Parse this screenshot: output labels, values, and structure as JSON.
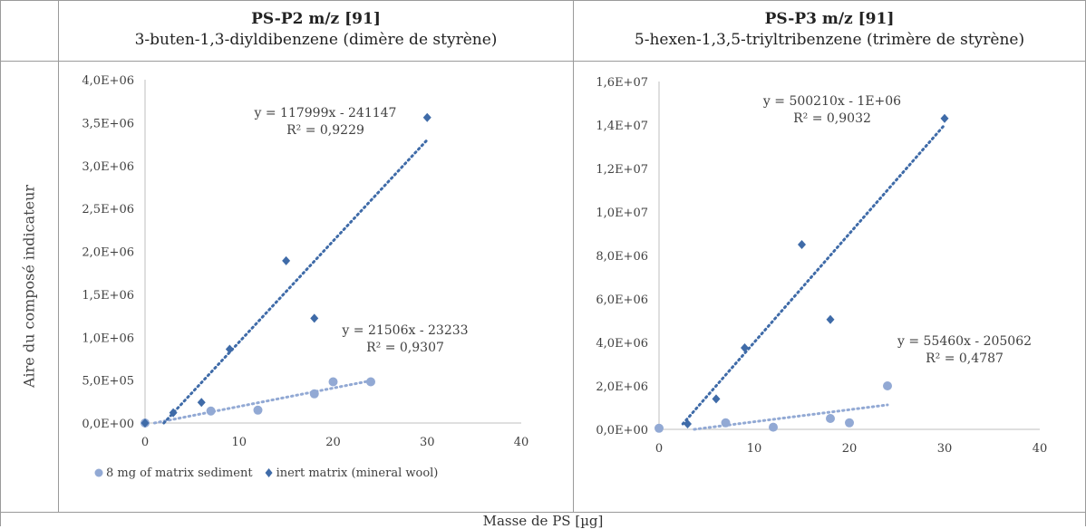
{
  "ylabel": "Aire du composé indicateur",
  "xlabel": "Masse de PS [µg]",
  "colors": {
    "series_sediment": "#92a9d4",
    "series_wool": "#3f6ba8",
    "axis": "#bfbfbf",
    "text": "#404040"
  },
  "chart_data": [
    {
      "type": "scatter",
      "title": "PS-P2 m/z [91]",
      "subtitle": "3-buten-1,3-diyldibenzene (dimère de styrène)",
      "xlim": [
        0,
        40
      ],
      "ylim": [
        0,
        4000000
      ],
      "xticks": [
        0,
        10,
        20,
        30,
        40
      ],
      "yticks": [
        0,
        500000,
        1000000,
        1500000,
        2000000,
        2500000,
        3000000,
        3500000,
        4000000
      ],
      "ytick_labels": [
        "0,0E+00",
        "5,0E+05",
        "1,0E+06",
        "1,5E+06",
        "2,0E+06",
        "2,5E+06",
        "3,0E+06",
        "3,5E+06",
        "4,0E+06"
      ],
      "legend": {
        "position": "bottom",
        "entries": [
          "8 mg of matrix sediment",
          "inert matrix (mineral wool)"
        ]
      },
      "series": [
        {
          "name": "8 mg of matrix sediment",
          "marker": "circle",
          "x": [
            0,
            7,
            12,
            18,
            20,
            24
          ],
          "y": [
            0,
            140000,
            150000,
            340000,
            480000,
            480000
          ],
          "trendline": {
            "slope": 21506,
            "intercept": -23233,
            "x_range": [
              1,
              24
            ]
          },
          "equation": "y = 21506x - 23233",
          "r2": "R² = 0,9307"
        },
        {
          "name": "inert matrix (mineral wool)",
          "marker": "diamond",
          "x": [
            0,
            3,
            6,
            9,
            15,
            18,
            30
          ],
          "y": [
            0,
            120000,
            240000,
            860000,
            1890000,
            1220000,
            3560000
          ],
          "trendline": {
            "slope": 117999,
            "intercept": -241147,
            "x_range": [
              2,
              30
            ]
          },
          "equation": "y = 117999x - 241147",
          "r2": "R² = 0,9229"
        }
      ]
    },
    {
      "type": "scatter",
      "title": "PS-P3 m/z [91]",
      "subtitle": "5-hexen-1,3,5-triyltribenzene (trimère de styrène)",
      "xlim": [
        0,
        40
      ],
      "ylim": [
        0,
        16000000
      ],
      "xticks": [
        0,
        10,
        20,
        30,
        40
      ],
      "yticks": [
        0,
        2000000,
        4000000,
        6000000,
        8000000,
        10000000,
        12000000,
        14000000,
        16000000
      ],
      "ytick_labels": [
        "0,0E+00",
        "2,0E+06",
        "4,0E+06",
        "6,0E+06",
        "8,0E+06",
        "1,0E+07",
        "1,2E+07",
        "1,4E+07",
        "1,6E+07"
      ],
      "series": [
        {
          "name": "8 mg of matrix sediment",
          "marker": "circle",
          "x": [
            0,
            7,
            12,
            18,
            20,
            24
          ],
          "y": [
            50000,
            300000,
            100000,
            500000,
            300000,
            2000000
          ],
          "trendline": {
            "slope": 55460,
            "intercept": -205062,
            "x_range": [
              3.7,
              24
            ]
          },
          "equation": "y = 55460x - 205062",
          "r2": "R² = 0,4787"
        },
        {
          "name": "inert matrix (mineral wool)",
          "marker": "diamond",
          "x": [
            3,
            6,
            9,
            15,
            18,
            30
          ],
          "y": [
            250000,
            1400000,
            3750000,
            8500000,
            5050000,
            14300000
          ],
          "trendline": {
            "slope": 500210,
            "intercept": -1000000,
            "x_range": [
              2.5,
              30
            ]
          },
          "equation": "y = 500210x - 1E+06",
          "r2": "R² = 0,9032"
        }
      ]
    }
  ]
}
